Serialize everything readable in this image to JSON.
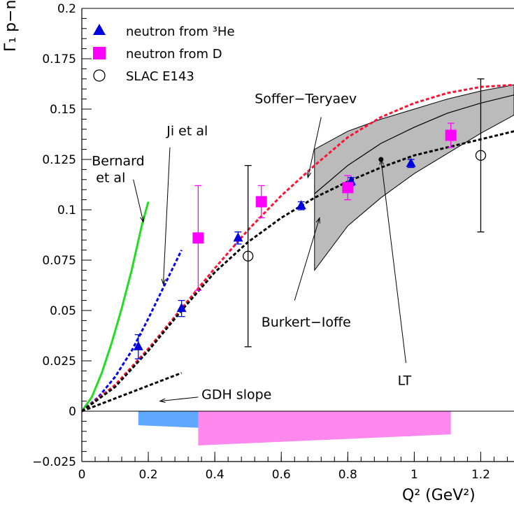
{
  "chart_data": {
    "type": "scatter",
    "xlabel": "Q² (GeV²)",
    "ylabel": "Γ₁ p−n",
    "xlim": [
      0,
      1.3
    ],
    "ylim": [
      -0.025,
      0.2
    ],
    "x_ticks": [
      "0",
      "0.2",
      "0.4",
      "0.6",
      "0.8",
      "1",
      "1.2"
    ],
    "x_tick_values": [
      0,
      0.2,
      0.4,
      0.6,
      0.8,
      1.0,
      1.2
    ],
    "y_ticks": [
      "−0.025",
      "0",
      "0.025",
      "0.05",
      "0.075",
      "0.1",
      "0.125",
      "0.15",
      "0.175",
      "0.2"
    ],
    "y_tick_values": [
      -0.025,
      0,
      0.025,
      0.05,
      0.075,
      0.1,
      0.125,
      0.15,
      0.175,
      0.2
    ],
    "legend": [
      {
        "label": "neutron from ³He",
        "marker": "triangle",
        "color": "#0000dd"
      },
      {
        "label": "neutron from D",
        "marker": "square",
        "color": "#ff00ff"
      },
      {
        "label": "SLAC E143",
        "marker": "open-circle",
        "color": "#000000"
      }
    ],
    "series": [
      {
        "name": "neutron from ³He",
        "marker": "triangle",
        "color": "#0000dd",
        "x": [
          0.17,
          0.3,
          0.47,
          0.66,
          0.81,
          0.99
        ],
        "y": [
          0.032,
          0.051,
          0.086,
          0.102,
          0.114,
          0.123
        ],
        "err": [
          0.006,
          0.004,
          0.003,
          0.002,
          0.002,
          0.002
        ]
      },
      {
        "name": "neutron from D",
        "marker": "square",
        "color": "#ff00ff",
        "x": [
          0.35,
          0.54,
          0.8,
          1.11
        ],
        "y": [
          0.086,
          0.104,
          0.111,
          0.137
        ],
        "err": [
          0.026,
          0.008,
          0.006,
          0.006
        ]
      },
      {
        "name": "SLAC E143",
        "marker": "open-circle",
        "color": "#000000",
        "x": [
          0.5,
          1.2
        ],
        "y": [
          0.077,
          0.127
        ],
        "err": [
          0.045,
          0.038
        ]
      }
    ],
    "curves": [
      {
        "label": "Bernard et al",
        "color": "#22dd22",
        "style": "solid",
        "x": [
          0,
          0.03,
          0.06,
          0.09,
          0.12,
          0.15,
          0.18,
          0.2
        ],
        "y": [
          0,
          0.007,
          0.019,
          0.034,
          0.051,
          0.07,
          0.092,
          0.104
        ]
      },
      {
        "label": "Ji et al",
        "color": "#0000ee",
        "style": "dash",
        "x": [
          0,
          0.05,
          0.1,
          0.15,
          0.2,
          0.25,
          0.3
        ],
        "y": [
          0,
          0.007,
          0.017,
          0.03,
          0.046,
          0.063,
          0.08
        ]
      },
      {
        "label": "Soffer−Teryaev",
        "color": "#ff1133",
        "style": "dash",
        "x": [
          0,
          0.1,
          0.2,
          0.3,
          0.4,
          0.5,
          0.6,
          0.7,
          0.8,
          0.9,
          1.0,
          1.1,
          1.2,
          1.3
        ],
        "y": [
          0,
          0.013,
          0.031,
          0.051,
          0.071,
          0.09,
          0.107,
          0.122,
          0.136,
          0.146,
          0.153,
          0.158,
          0.161,
          0.162
        ]
      },
      {
        "label": "Burkert−Ioffe",
        "color": "#000000",
        "style": "dash",
        "x": [
          0,
          0.1,
          0.2,
          0.3,
          0.4,
          0.5,
          0.6,
          0.7,
          0.8,
          0.9,
          1.0,
          1.1,
          1.2,
          1.3
        ],
        "y": [
          0,
          0.012,
          0.03,
          0.05,
          0.069,
          0.084,
          0.096,
          0.106,
          0.114,
          0.121,
          0.127,
          0.131,
          0.135,
          0.139
        ]
      },
      {
        "label": "GDH slope",
        "color": "#000000",
        "style": "dash",
        "x": [
          0,
          0.3
        ],
        "y": [
          0,
          0.019
        ]
      },
      {
        "label": "LT",
        "color": "#000000",
        "style": "solid",
        "x": [
          0.7,
          0.8,
          0.9,
          1.0,
          1.1,
          1.2,
          1.3
        ],
        "y": [
          0.108,
          0.122,
          0.133,
          0.141,
          0.148,
          0.153,
          0.157
        ]
      }
    ],
    "band": {
      "label": "LT",
      "x": [
        0.7,
        0.8,
        0.9,
        1.0,
        1.1,
        1.2,
        1.3
      ],
      "upper": [
        0.13,
        0.139,
        0.145,
        0.15,
        0.155,
        0.159,
        0.162
      ],
      "lower": [
        0.07,
        0.092,
        0.106,
        0.118,
        0.128,
        0.138,
        0.147
      ],
      "color": "#bbbbbb"
    },
    "systematics": [
      {
        "color": "#5fa8ff",
        "x": [
          0.17,
          0.99
        ],
        "bottom_left": -0.007,
        "bottom_right": -0.0125
      },
      {
        "color": "#ff88ee",
        "x": [
          0.35,
          1.11
        ],
        "bottom_left": -0.017,
        "bottom_right": -0.0115
      }
    ],
    "lt_point": {
      "x": 0.9,
      "y": 0.125
    },
    "annotations": [
      {
        "text": "Bernard",
        "x": 0.03,
        "y": 0.122,
        "lines": "et al",
        "arrow_from": [
          0.155,
          0.115
        ],
        "arrow_to": [
          0.185,
          0.094
        ]
      },
      {
        "text": "Ji et al",
        "x": 0.255,
        "y": 0.137,
        "arrow_from": [
          0.265,
          0.131
        ],
        "arrow_to": [
          0.245,
          0.063
        ]
      },
      {
        "text": "Soffer−Teryaev",
        "x": 0.52,
        "y": 0.153,
        "arrow_from": [
          0.72,
          0.146
        ],
        "arrow_to": [
          0.68,
          0.116
        ]
      },
      {
        "text": "Burkert−Ioffe",
        "x": 0.54,
        "y": 0.042,
        "arrow_from": [
          0.64,
          0.055
        ],
        "arrow_to": [
          0.715,
          0.096
        ]
      },
      {
        "text": "LT",
        "x": 0.95,
        "y": 0.013,
        "arrow_from": [
          0.975,
          0.024
        ],
        "arrow_to": [
          0.9,
          0.125
        ]
      },
      {
        "text": "GDH slope",
        "x": 0.36,
        "y": 0.006,
        "arrow_from": [
          0.35,
          0.007
        ],
        "arrow_to": [
          0.235,
          0.005
        ]
      }
    ]
  }
}
